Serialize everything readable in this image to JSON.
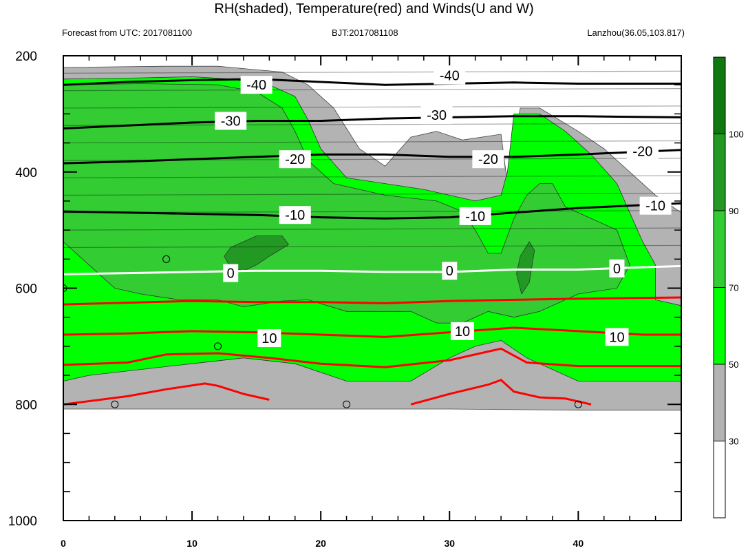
{
  "chart_data": {
    "type": "heatmap",
    "title": "RH(shaded), Temperature(red) and Winds(U and W)",
    "left_subtitle": "Forecast from UTC: 2017081100",
    "center_subtitle": "BJT:2017081108",
    "right_subtitle": "Lanzhou(36.05,103.817)",
    "xlim": [
      0,
      48
    ],
    "ylim": [
      1000,
      200
    ],
    "y_reversed": true,
    "x_ticks": [
      0,
      10,
      20,
      30,
      40
    ],
    "x_tick_labels": [
      "0",
      "10",
      "20",
      "30",
      "40"
    ],
    "y_ticks": [
      200,
      400,
      600,
      800,
      1000
    ],
    "y_tick_labels": [
      "200",
      "400",
      "600",
      "800",
      "1000"
    ],
    "colorbar": {
      "levels": [
        30,
        50,
        70,
        90,
        100
      ],
      "labels": [
        "30",
        "50",
        "70",
        "90",
        "100"
      ],
      "colors": [
        "#ffffff",
        "#b3b3b3",
        "#00ff00",
        "#33cc33",
        "#229922",
        "#117711"
      ]
    },
    "temperature_contours": [
      {
        "label": "-40",
        "color": "#000000",
        "points": [
          [
            0,
            250
          ],
          [
            5,
            245
          ],
          [
            10,
            242
          ],
          [
            15,
            240
          ],
          [
            20,
            245
          ],
          [
            25,
            250
          ],
          [
            30,
            248
          ],
          [
            35,
            246
          ],
          [
            40,
            248
          ],
          [
            48,
            248
          ]
        ],
        "label_positions": [
          [
            15,
            250
          ],
          [
            30,
            234
          ]
        ]
      },
      {
        "label": "-30",
        "color": "#000000",
        "points": [
          [
            0,
            325
          ],
          [
            5,
            320
          ],
          [
            10,
            315
          ],
          [
            15,
            312
          ],
          [
            20,
            312
          ],
          [
            25,
            308
          ],
          [
            30,
            306
          ],
          [
            35,
            304
          ],
          [
            40,
            304
          ],
          [
            48,
            306
          ]
        ],
        "label_positions": [
          [
            13,
            312
          ],
          [
            29,
            302
          ]
        ]
      },
      {
        "label": "-20",
        "color": "#000000",
        "points": [
          [
            0,
            385
          ],
          [
            5,
            382
          ],
          [
            10,
            378
          ],
          [
            15,
            374
          ],
          [
            20,
            370
          ],
          [
            25,
            370
          ],
          [
            30,
            374
          ],
          [
            35,
            374
          ],
          [
            40,
            370
          ],
          [
            48,
            362
          ]
        ],
        "label_positions": [
          [
            18,
            378
          ],
          [
            33,
            378
          ],
          [
            45,
            364
          ]
        ]
      },
      {
        "label": "-10",
        "color": "#000000",
        "points": [
          [
            0,
            468
          ],
          [
            5,
            470
          ],
          [
            10,
            472
          ],
          [
            15,
            474
          ],
          [
            20,
            478
          ],
          [
            25,
            480
          ],
          [
            30,
            478
          ],
          [
            35,
            470
          ],
          [
            40,
            462
          ],
          [
            48,
            454
          ]
        ],
        "label_positions": [
          [
            18,
            474
          ],
          [
            32,
            476
          ],
          [
            46,
            458
          ]
        ]
      },
      {
        "label": "0",
        "color": "#ffffff",
        "points": [
          [
            0,
            576
          ],
          [
            5,
            574
          ],
          [
            10,
            572
          ],
          [
            15,
            570
          ],
          [
            20,
            570
          ],
          [
            25,
            572
          ],
          [
            30,
            572
          ],
          [
            35,
            568
          ],
          [
            40,
            568
          ],
          [
            45,
            564
          ],
          [
            48,
            562
          ]
        ],
        "label_positions": [
          [
            13,
            574
          ],
          [
            30,
            570
          ],
          [
            43,
            566
          ]
        ]
      },
      {
        "label": "10",
        "color": "#ff0000",
        "points": [
          [
            0,
            680
          ],
          [
            5,
            678
          ],
          [
            10,
            674
          ],
          [
            15,
            676
          ],
          [
            20,
            680
          ],
          [
            25,
            684
          ],
          [
            30,
            676
          ],
          [
            35,
            668
          ],
          [
            40,
            674
          ],
          [
            45,
            680
          ],
          [
            48,
            680
          ]
        ],
        "label_positions": [
          [
            16,
            686
          ],
          [
            31,
            674
          ],
          [
            43,
            684
          ]
        ]
      }
    ],
    "extra_red_contours": [
      {
        "points": [
          [
            0,
            628
          ],
          [
            5,
            625
          ],
          [
            10,
            622
          ],
          [
            15,
            624
          ],
          [
            20,
            624
          ],
          [
            25,
            626
          ],
          [
            30,
            622
          ],
          [
            35,
            620
          ],
          [
            40,
            618
          ],
          [
            48,
            616
          ]
        ]
      },
      {
        "points": [
          [
            0,
            732
          ],
          [
            5,
            728
          ],
          [
            8,
            714
          ],
          [
            12,
            712
          ],
          [
            16,
            720
          ],
          [
            20,
            730
          ],
          [
            25,
            736
          ],
          [
            30,
            724
          ],
          [
            34,
            704
          ],
          [
            36,
            728
          ],
          [
            40,
            734
          ],
          [
            48,
            734
          ]
        ]
      },
      {
        "points": [
          [
            0,
            800
          ],
          [
            5,
            786
          ],
          [
            8,
            774
          ],
          [
            11,
            764
          ],
          [
            12,
            768
          ],
          [
            14,
            782
          ],
          [
            16,
            792
          ]
        ]
      },
      {
        "points": [
          [
            27,
            800
          ],
          [
            30,
            782
          ],
          [
            33,
            766
          ],
          [
            34,
            758
          ],
          [
            35,
            778
          ],
          [
            37,
            788
          ],
          [
            39,
            790
          ],
          [
            41,
            800
          ]
        ]
      }
    ],
    "wind_markers": [
      {
        "x": 4,
        "y": 800
      },
      {
        "x": 8,
        "y": 550
      },
      {
        "x": 12,
        "y": 700
      },
      {
        "x": 22,
        "y": 800
      },
      {
        "x": 40,
        "y": 800
      },
      {
        "x": 0,
        "y": 600
      }
    ]
  }
}
